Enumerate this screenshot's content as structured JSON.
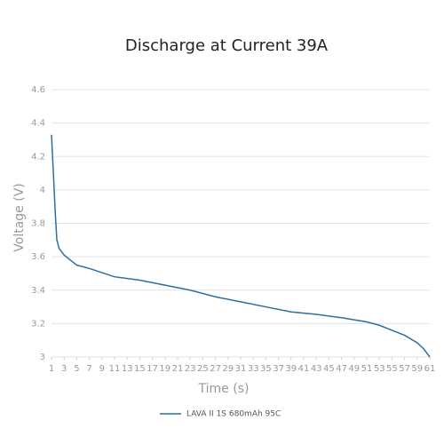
{
  "chart_data": {
    "type": "line",
    "title": "Discharge at Current 39A",
    "x_label": "Time (s)",
    "y_label": "Voltage (V)",
    "xlim": [
      1,
      61
    ],
    "xticks": [
      1,
      3,
      5,
      7,
      9,
      11,
      13,
      15,
      17,
      19,
      21,
      23,
      25,
      27,
      29,
      31,
      33,
      35,
      37,
      39,
      41,
      43,
      45,
      47,
      49,
      51,
      53,
      55,
      57,
      59,
      61
    ],
    "ylim": [
      3,
      4.6
    ],
    "yticks": [
      3,
      3.2,
      3.4,
      3.6,
      3.8,
      4,
      4.2,
      4.4,
      4.6
    ],
    "grid": true,
    "legend": "bottom",
    "x": [
      1,
      1.3,
      1.6,
      1.85,
      2.2,
      3,
      5,
      7,
      11,
      15,
      19,
      23,
      27,
      31,
      35,
      39,
      43,
      47,
      51,
      53,
      55,
      57,
      59,
      60,
      61
    ],
    "series": [
      {
        "name": "LAVA II 1S 680mAh 95C",
        "color": "#2f6e9c",
        "values": [
          4.33,
          4.1,
          3.86,
          3.7,
          3.65,
          3.61,
          3.55,
          3.53,
          3.48,
          3.46,
          3.43,
          3.4,
          3.36,
          3.33,
          3.3,
          3.27,
          3.255,
          3.235,
          3.21,
          3.19,
          3.16,
          3.13,
          3.085,
          3.05,
          3.0
        ]
      }
    ]
  }
}
